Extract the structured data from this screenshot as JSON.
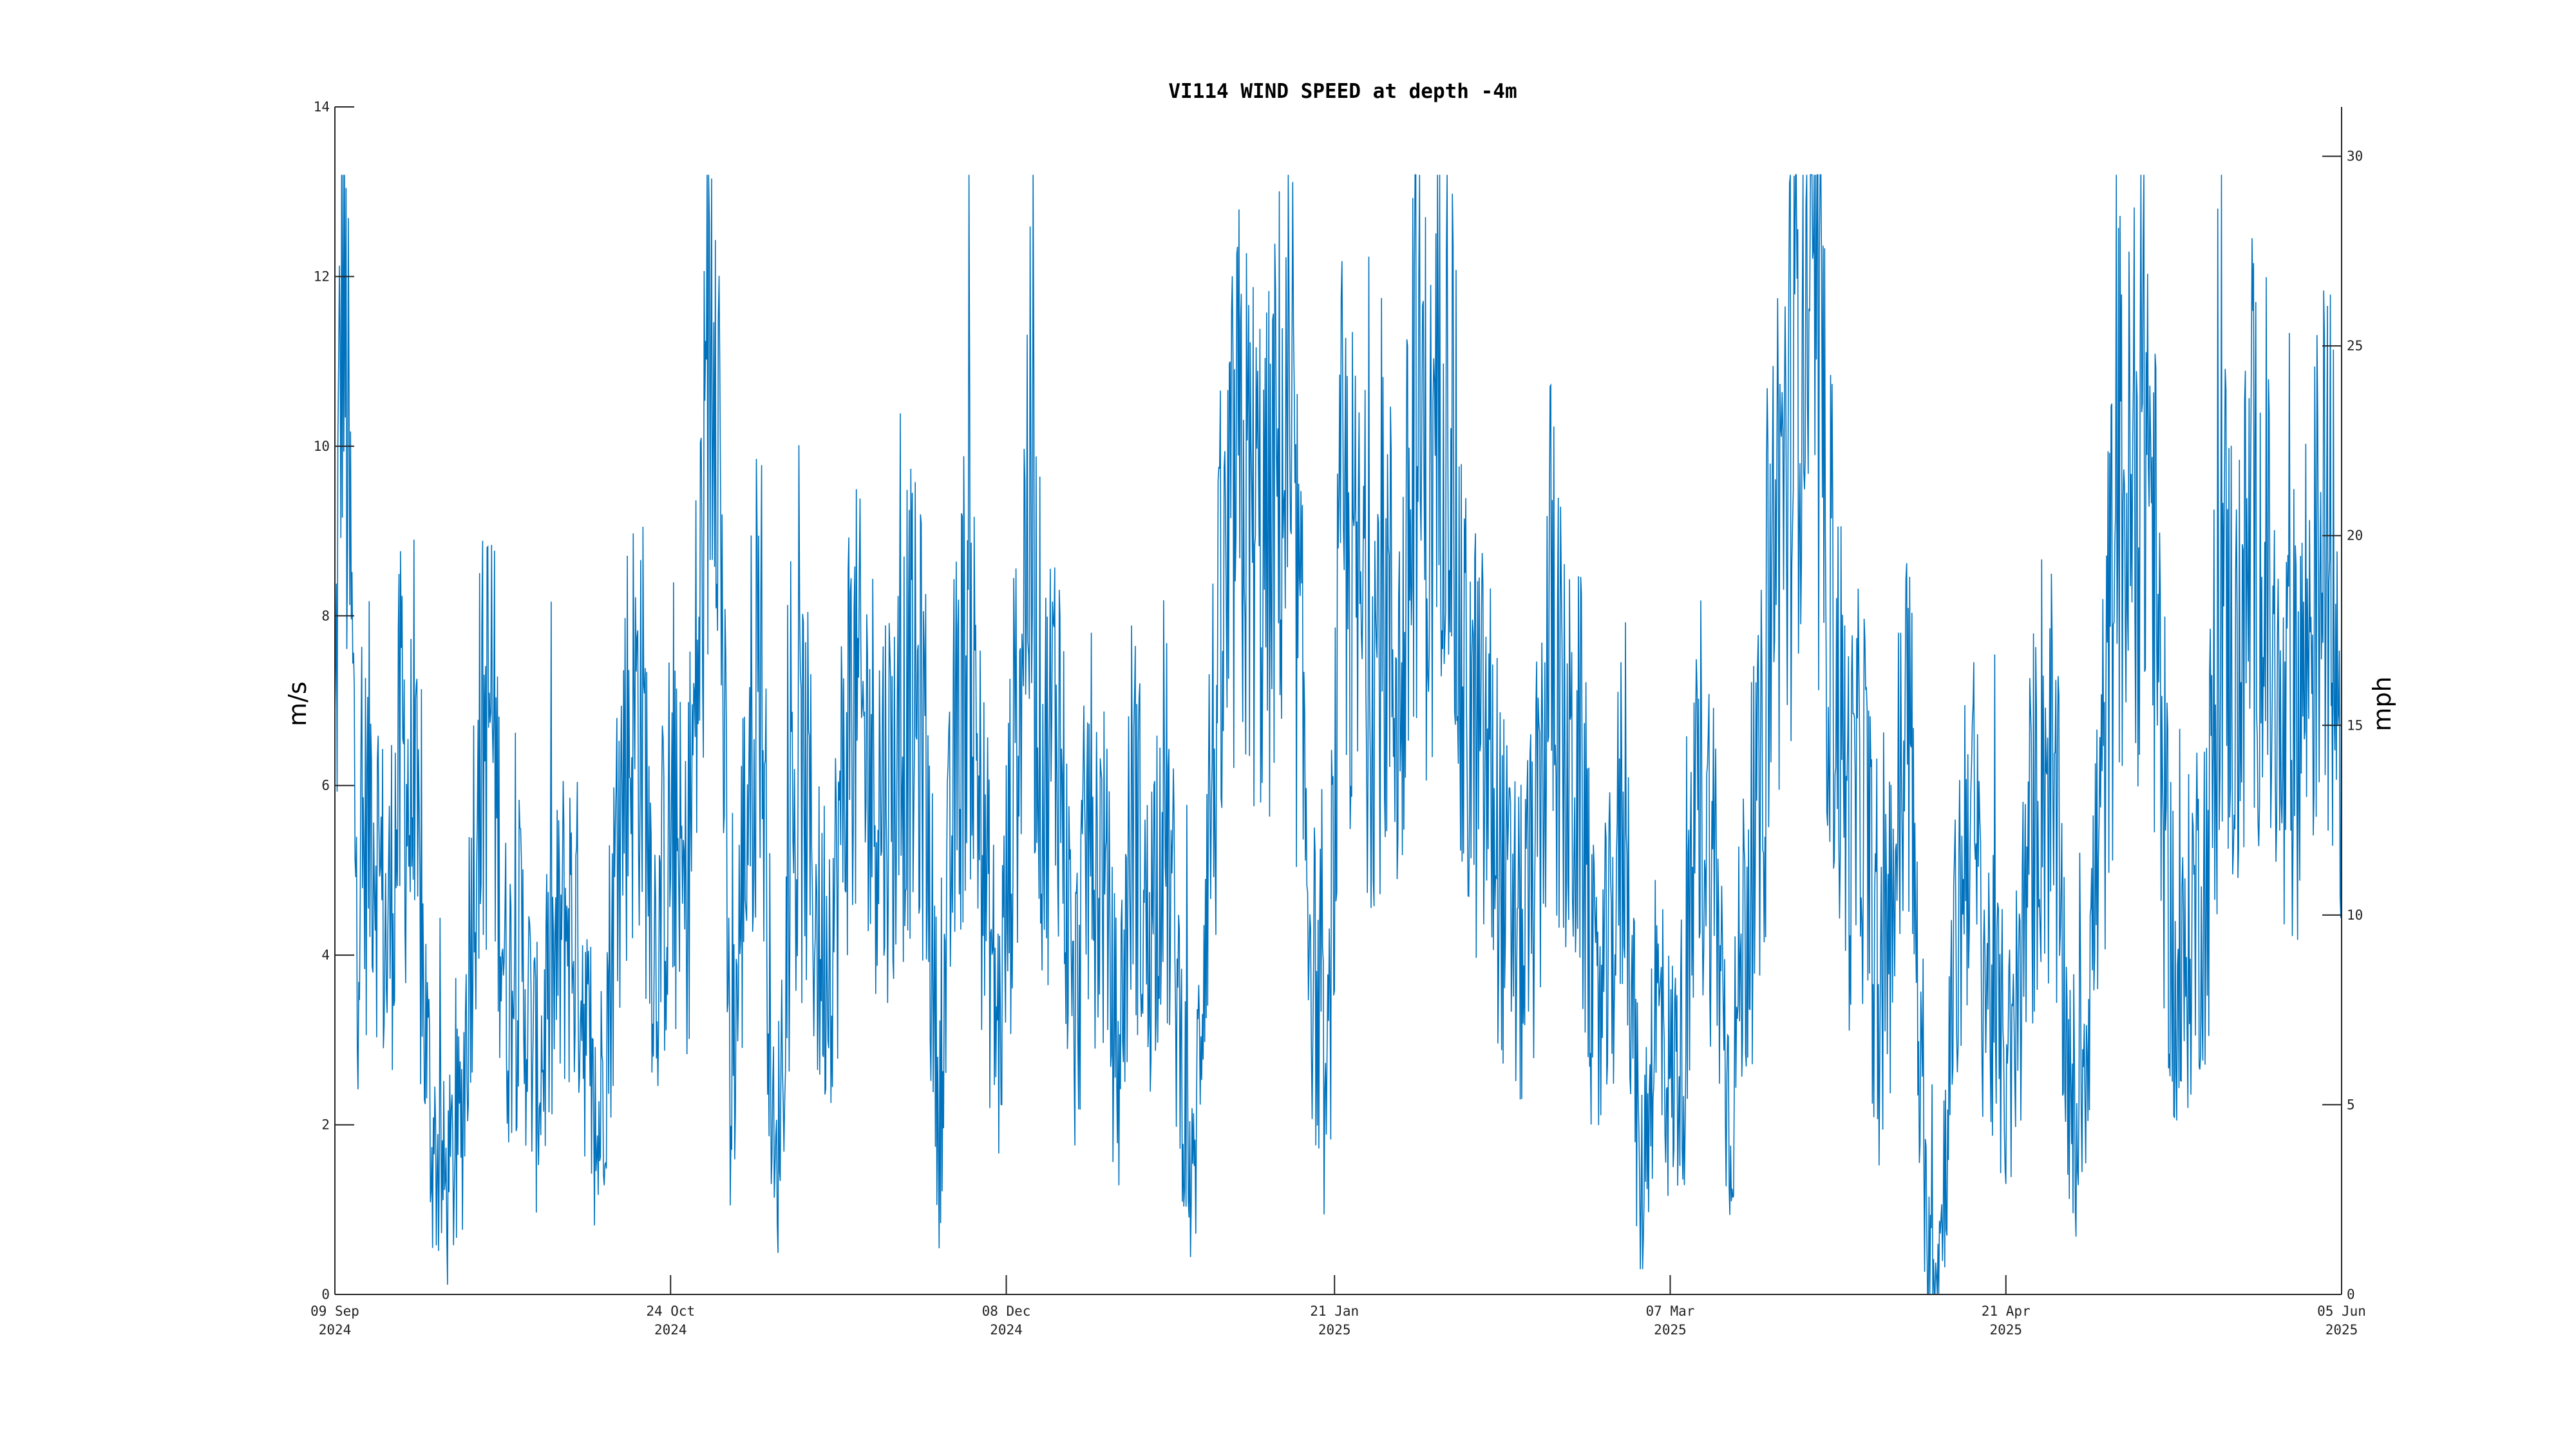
{
  "colors": {
    "series": "#0072BD",
    "axis": "#262626",
    "background": "#ffffff"
  },
  "chart_data": {
    "type": "line",
    "title": "VI114 WIND SPEED at depth -4m",
    "ylabel": "m/s",
    "ylabel_right": "mph",
    "ylim": [
      0,
      14
    ],
    "ylim_right": [
      0,
      31.3
    ],
    "yticks": [
      "0",
      "2",
      "4",
      "6",
      "8",
      "10",
      "12",
      "14"
    ],
    "yticks_right": [
      "0",
      "5",
      "10",
      "15",
      "20",
      "25",
      "30"
    ],
    "xlim": [
      "2024-09-09",
      "2025-06-05"
    ],
    "xticks": [
      {
        "date": "2024-09-09",
        "label1": "09 Sep",
        "label2": "2024"
      },
      {
        "date": "2024-10-24",
        "label1": "24 Oct",
        "label2": "2024"
      },
      {
        "date": "2024-12-08",
        "label1": "08 Dec",
        "label2": "2024"
      },
      {
        "date": "2025-01-21",
        "label1": "21 Jan",
        "label2": "2025"
      },
      {
        "date": "2025-03-07",
        "label1": "07 Mar",
        "label2": "2025"
      },
      {
        "date": "2025-04-21",
        "label1": "21 Apr",
        "label2": "2025"
      },
      {
        "date": "2025-06-05",
        "label1": "05 Jun",
        "label2": "2025"
      }
    ],
    "grid": false,
    "legend": "none",
    "series": [
      {
        "color": "#0072BD",
        "x": [
          "2024-09-09",
          "2024-09-10",
          "2024-09-12",
          "2024-09-14",
          "2024-09-16",
          "2024-09-18",
          "2024-09-20",
          "2024-09-22",
          "2024-09-24",
          "2024-09-26",
          "2024-09-28",
          "2024-09-30",
          "2024-10-02",
          "2024-10-04",
          "2024-10-06",
          "2024-10-08",
          "2024-10-10",
          "2024-10-12",
          "2024-10-14",
          "2024-10-16",
          "2024-10-18",
          "2024-10-20",
          "2024-10-22",
          "2024-10-24",
          "2024-10-26",
          "2024-10-28",
          "2024-10-30",
          "2024-11-01",
          "2024-11-03",
          "2024-11-05",
          "2024-11-07",
          "2024-11-09",
          "2024-11-11",
          "2024-11-13",
          "2024-11-15",
          "2024-11-17",
          "2024-11-19",
          "2024-11-21",
          "2024-11-23",
          "2024-11-25",
          "2024-11-27",
          "2024-11-29",
          "2024-12-01",
          "2024-12-03",
          "2024-12-05",
          "2024-12-07",
          "2024-12-09",
          "2024-12-11",
          "2024-12-13",
          "2024-12-15",
          "2024-12-17",
          "2024-12-19",
          "2024-12-21",
          "2024-12-23",
          "2024-12-25",
          "2024-12-27",
          "2024-12-29",
          "2024-12-31",
          "2025-01-02",
          "2025-01-04",
          "2025-01-06",
          "2025-01-08",
          "2025-01-10",
          "2025-01-12",
          "2025-01-14",
          "2025-01-16",
          "2025-01-18",
          "2025-01-20",
          "2025-01-22",
          "2025-01-24",
          "2025-01-26",
          "2025-01-28",
          "2025-01-30",
          "2025-02-01",
          "2025-02-03",
          "2025-02-05",
          "2025-02-07",
          "2025-02-09",
          "2025-02-11",
          "2025-02-13",
          "2025-02-15",
          "2025-02-17",
          "2025-02-19",
          "2025-02-21",
          "2025-02-23",
          "2025-02-25",
          "2025-02-27",
          "2025-03-01",
          "2025-03-03",
          "2025-03-05",
          "2025-03-07",
          "2025-03-09",
          "2025-03-11",
          "2025-03-13",
          "2025-03-15",
          "2025-03-17",
          "2025-03-19",
          "2025-03-21",
          "2025-03-23",
          "2025-03-25",
          "2025-03-27",
          "2025-03-29",
          "2025-03-31",
          "2025-04-02",
          "2025-04-04",
          "2025-04-06",
          "2025-04-08",
          "2025-04-10",
          "2025-04-12",
          "2025-04-14",
          "2025-04-16",
          "2025-04-18",
          "2025-04-20",
          "2025-04-22",
          "2025-04-24",
          "2025-04-26",
          "2025-04-28",
          "2025-04-30",
          "2025-05-02",
          "2025-05-04",
          "2025-05-06",
          "2025-05-08",
          "2025-05-10",
          "2025-05-12",
          "2025-05-14",
          "2025-05-16",
          "2025-05-18",
          "2025-05-20",
          "2025-05-22",
          "2025-05-24",
          "2025-05-26",
          "2025-05-28",
          "2025-05-30",
          "2025-06-01",
          "2025-06-03",
          "2025-06-05"
        ],
        "y": [
          6.0,
          12.6,
          4.5,
          6.0,
          4.0,
          6.5,
          5.0,
          1.8,
          1.2,
          2.0,
          6.0,
          7.0,
          3.5,
          4.0,
          2.5,
          3.5,
          4.5,
          4.0,
          1.5,
          4.0,
          6.5,
          7.0,
          4.0,
          5.5,
          4.5,
          8.0,
          13.0,
          2.0,
          5.5,
          8.0,
          1.0,
          5.0,
          6.0,
          4.0,
          4.5,
          7.0,
          6.5,
          6.0,
          6.0,
          7.0,
          6.5,
          2.0,
          6.0,
          8.0,
          5.0,
          3.0,
          6.0,
          9.5,
          6.0,
          7.0,
          3.0,
          5.5,
          5.0,
          2.5,
          6.0,
          4.0,
          6.0,
          3.5,
          1.0,
          5.5,
          7.5,
          9.5,
          9.0,
          8.5,
          10.0,
          8.0,
          4.0,
          2.0,
          9.0,
          8.0,
          7.5,
          8.0,
          7.0,
          10.5,
          9.0,
          12.0,
          7.0,
          6.5,
          6.0,
          4.5,
          4.0,
          5.0,
          8.0,
          6.0,
          6.0,
          3.0,
          4.0,
          6.0,
          1.0,
          3.5,
          2.5,
          3.0,
          6.0,
          5.0,
          2.0,
          4.5,
          5.5,
          9.0,
          10.0,
          12.8,
          10.0,
          7.5,
          5.5,
          6.0,
          3.0,
          5.0,
          7.0,
          1.0,
          0.3,
          3.5,
          6.0,
          4.0,
          3.0,
          2.5,
          5.0,
          6.5,
          5.0,
          1.5,
          3.5,
          6.0,
          9.5,
          9.0,
          10.5,
          6.0,
          3.0,
          4.5,
          5.0,
          8.5,
          7.0,
          9.0,
          8.0,
          6.0,
          7.0,
          8.0,
          9.0,
          7.0
        ]
      }
    ]
  }
}
